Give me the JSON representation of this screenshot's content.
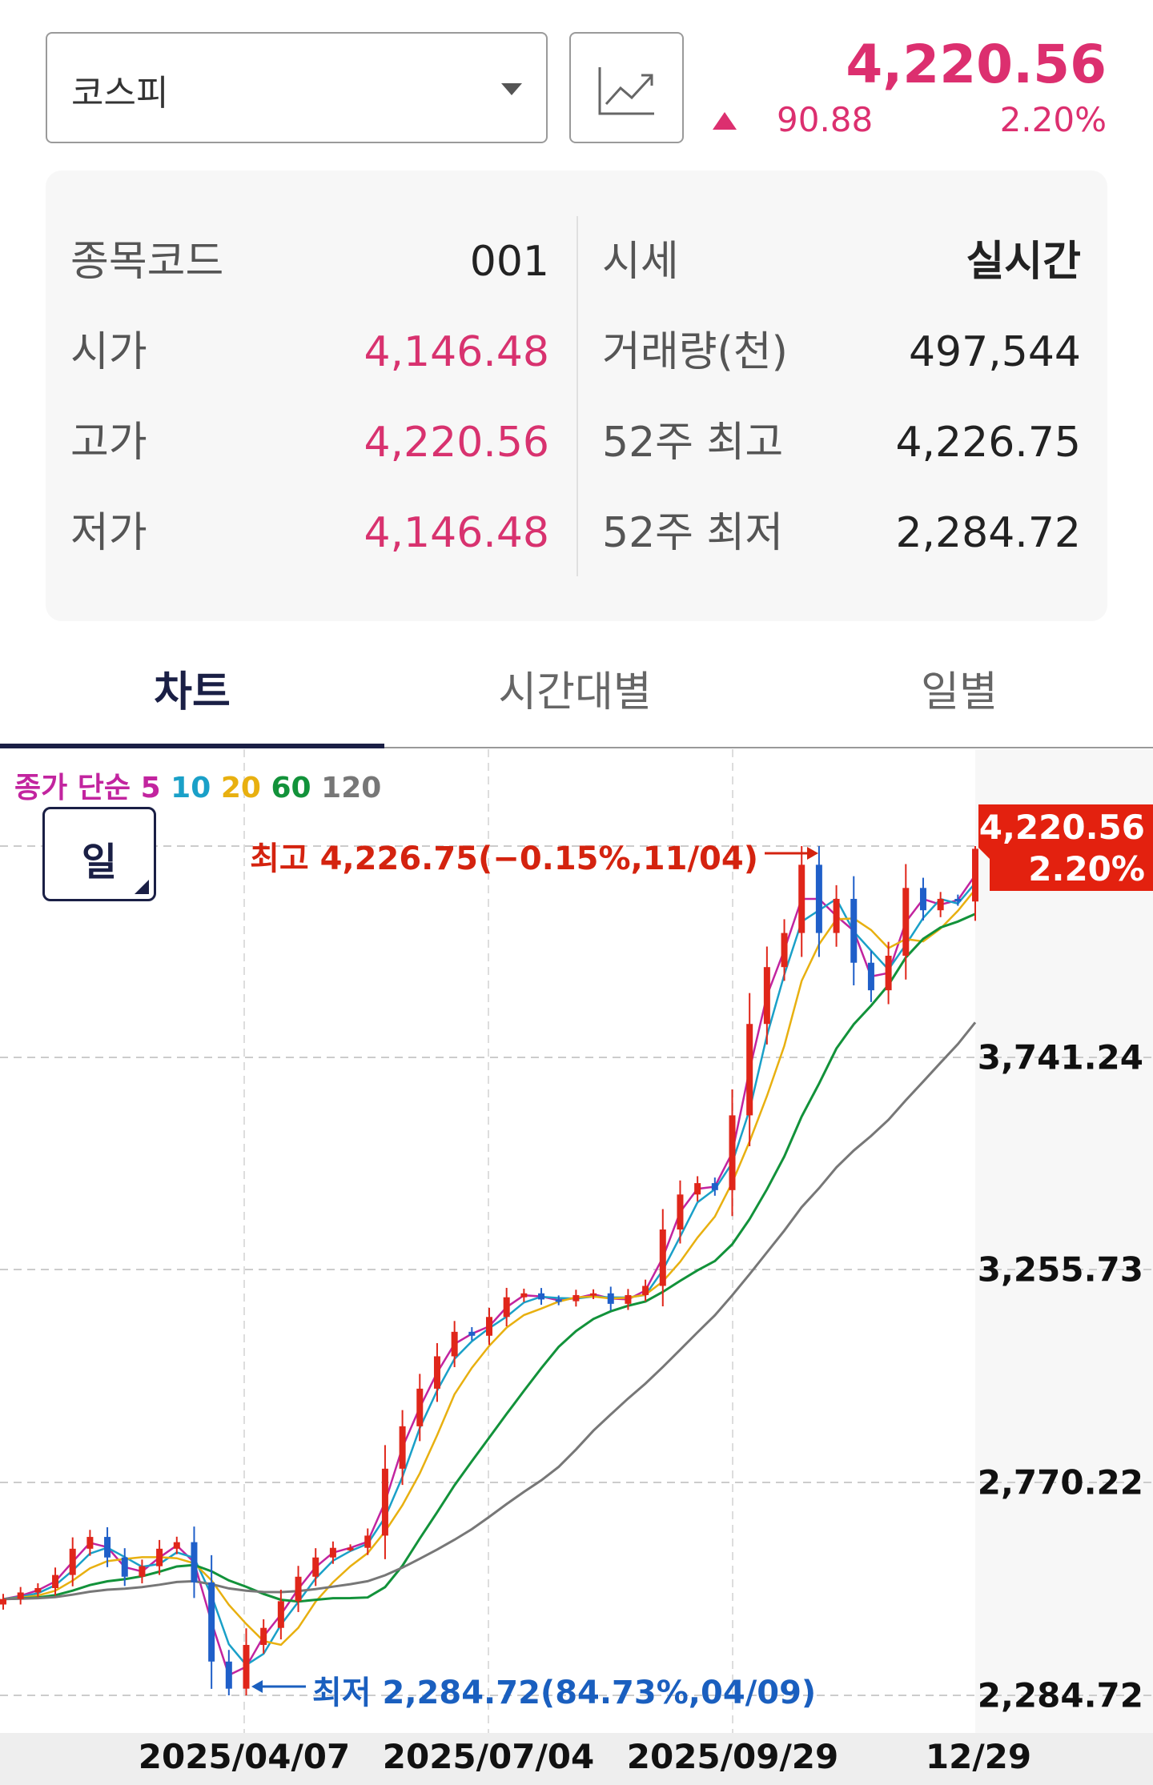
{
  "header": {
    "index_select": "코스피",
    "chart_icon": "line-chart-icon",
    "price": "4,220.56",
    "change": "90.88",
    "change_pct": "2.20%",
    "direction": "up",
    "up_color": "#dc2f6f"
  },
  "info": {
    "left": [
      {
        "label": "종목코드",
        "value": "001"
      },
      {
        "label": "시가",
        "value": "4,146.48"
      },
      {
        "label": "고가",
        "value": "4,220.56"
      },
      {
        "label": "저가",
        "value": "4,146.48"
      }
    ],
    "right": [
      {
        "label": "시세",
        "value": "실시간"
      },
      {
        "label": "거래량(천)",
        "value": "497,544"
      },
      {
        "label": "52주 최고",
        "value": "4,226.75"
      },
      {
        "label": "52주 최저",
        "value": "2,284.72"
      }
    ]
  },
  "tabs": [
    {
      "label": "차트",
      "active": true
    },
    {
      "label": "시간대별",
      "active": false
    },
    {
      "label": "일별",
      "active": false
    }
  ],
  "chart_controls": {
    "legend": {
      "prefix": "종가 단순",
      "periods": [
        "5",
        "10",
        "20",
        "60",
        "120"
      ],
      "colors": [
        "#c2249f",
        "#1aa0c8",
        "#e8b010",
        "#12923a",
        "#777777"
      ]
    },
    "period_button": "일"
  },
  "chart_data": {
    "type": "candlestick",
    "y_ticks": [
      "4,226.75",
      "3,741.24",
      "3,255.73",
      "2,770.22",
      "2,284.72"
    ],
    "ylim": [
      2284.72,
      4226.75
    ],
    "x_ticks": [
      "2025/04/07",
      "2025/07/04",
      "2025/09/29",
      "12/29"
    ],
    "grid": true,
    "current_tag": {
      "price": "4,220.56",
      "pct": "2.20%",
      "color": "#e3210f"
    },
    "max_annotation": "최고 4,226.75(−0.15%,11/04)",
    "min_annotation": "최저 2,284.72(84.73%,04/09)",
    "up_color": "#e0261a",
    "down_color": "#1f5fc9",
    "closes": [
      2505,
      2520,
      2530,
      2560,
      2620,
      2647,
      2600,
      2556,
      2580,
      2620,
      2635,
      2543,
      2362,
      2300,
      2400,
      2439,
      2500,
      2556,
      2600,
      2622,
      2622,
      2650,
      2803,
      2900,
      2986,
      3060,
      3116,
      3107,
      3150,
      3195,
      3204,
      3190,
      3186,
      3200,
      3204,
      3180,
      3200,
      3221,
      3350,
      3430,
      3456,
      3440,
      3611,
      3820,
      3950,
      4028,
      4184,
      4028,
      4106,
      3960,
      3897,
      3976,
      4131,
      4080,
      4106,
      4100,
      4220.56
    ]
  }
}
